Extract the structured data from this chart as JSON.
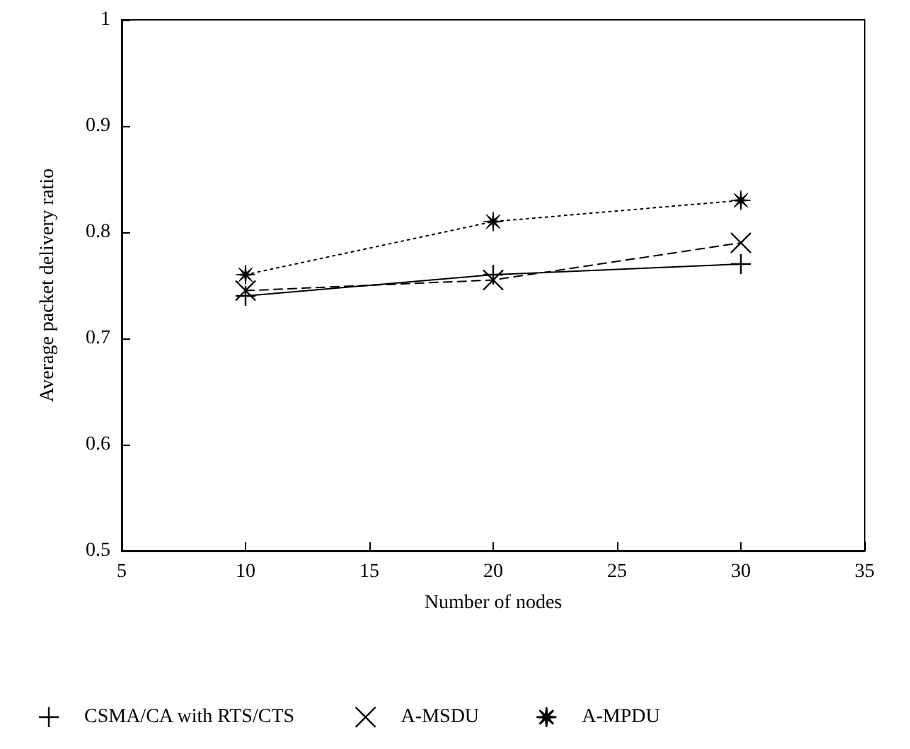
{
  "chart_data": {
    "type": "line",
    "xlabel": "Number of nodes",
    "ylabel": "Average packet delivery ratio",
    "x": [
      10,
      20,
      30
    ],
    "series": [
      {
        "name": "CSMA/CA with RTS/CTS",
        "color": "#000000",
        "values": [
          0.74,
          0.76,
          0.77
        ],
        "marker": "plus",
        "line_style": "solid"
      },
      {
        "name": "A-MSDU",
        "color": "#000000",
        "values": [
          0.745,
          0.755,
          0.79
        ],
        "marker": "cross",
        "line_style": "dashed"
      },
      {
        "name": "A-MPDU",
        "color": "#000000",
        "values": [
          0.76,
          0.81,
          0.83
        ],
        "marker": "star",
        "line_style": "dotted"
      }
    ],
    "xlim": [
      5,
      35
    ],
    "xticks": [
      5,
      10,
      15,
      20,
      25,
      30,
      35
    ],
    "ylim": [
      0.5,
      1
    ],
    "yticks": [
      0.5,
      0.6,
      0.7,
      0.8,
      0.9,
      1
    ],
    "grid": false,
    "legend": "bottom"
  }
}
